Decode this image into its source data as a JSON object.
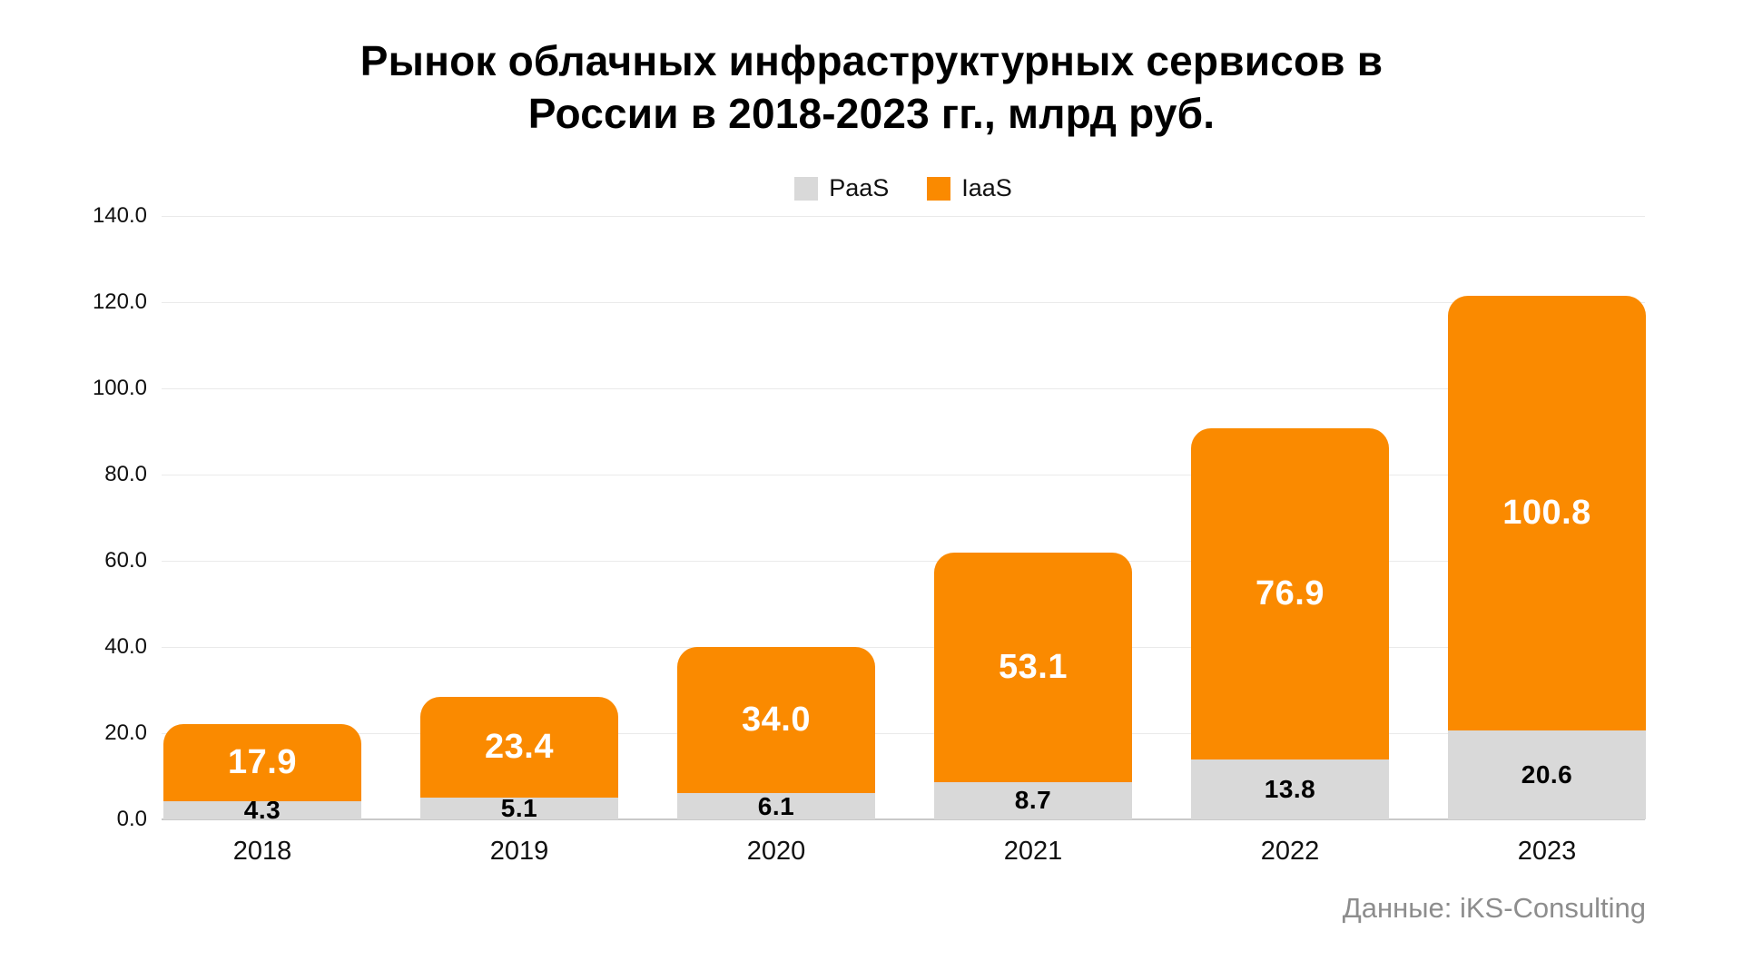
{
  "title": "Рынок облачных инфраструктурных сервисов в\nРоссии в 2018-2023 гг., млрд руб.",
  "source": "Данные: iKS-Consulting",
  "colors": {
    "paas": "#D9D9D9",
    "iaas": "#FA8A00",
    "grid": "#EAEAEA",
    "axis": "#C9C9C9",
    "text_dark": "#111111",
    "label_on_orange": "#FFFFFF",
    "label_on_gray": "#000000",
    "source_text": "#8D8D8D",
    "background": "#FFFFFF"
  },
  "legend": [
    {
      "label": "PaaS",
      "color_key": "paas"
    },
    {
      "label": "IaaS",
      "color_key": "iaas"
    }
  ],
  "chart_data": {
    "type": "bar",
    "stacked": true,
    "title": "Рынок облачных инфраструктурных сервисов в России в 2018-2023 гг., млрд руб.",
    "categories": [
      "2018",
      "2019",
      "2020",
      "2021",
      "2022",
      "2023"
    ],
    "series": [
      {
        "name": "PaaS",
        "color_key": "paas",
        "label_color_key": "label_on_gray",
        "values": [
          4.3,
          5.1,
          6.1,
          8.7,
          13.8,
          20.6
        ]
      },
      {
        "name": "IaaS",
        "color_key": "iaas",
        "label_color_key": "label_on_orange",
        "values": [
          17.9,
          23.4,
          34.0,
          53.1,
          76.9,
          100.8
        ]
      }
    ],
    "totals": [
      22.2,
      28.5,
      40.1,
      61.8,
      90.7,
      121.4
    ],
    "xlabel": "",
    "ylabel": "",
    "ylim": [
      0,
      140
    ],
    "ytick_step": 20,
    "ytick_labels": [
      "0.0",
      "20.0",
      "40.0",
      "60.0",
      "80.0",
      "100.0",
      "120.0",
      "140.0"
    ],
    "grid": true,
    "legend_position": "top-center",
    "value_label_decimals": 1
  }
}
